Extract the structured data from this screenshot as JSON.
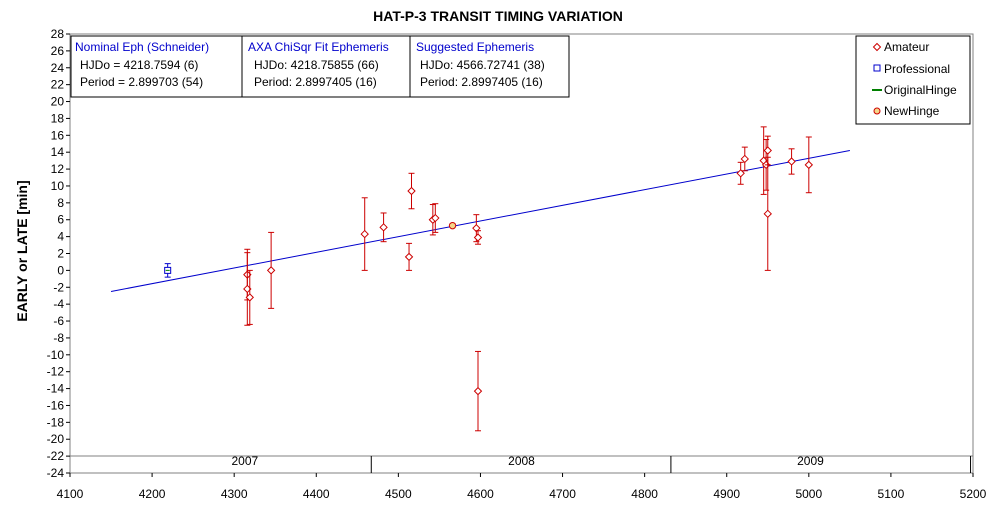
{
  "chart_data": {
    "type": "scatter",
    "title": "HAT-P-3 TRANSIT TIMING VARIATION",
    "ylabel": "EARLY or LATE [min]",
    "xlabel": "",
    "xlim": [
      4100,
      5200
    ],
    "ylim": [
      -24,
      28
    ],
    "x_ticks": [
      4100,
      4200,
      4300,
      4400,
      4500,
      4600,
      4700,
      4800,
      4900,
      5000,
      5100,
      5200
    ],
    "y_ticks": [
      -24,
      -22,
      -20,
      -18,
      -16,
      -14,
      -12,
      -10,
      -8,
      -6,
      -4,
      -2,
      0,
      2,
      4,
      6,
      8,
      10,
      12,
      14,
      16,
      18,
      20,
      22,
      24,
      26,
      28
    ],
    "grid": false,
    "year_labels": [
      {
        "label": "2007",
        "x": 4313
      },
      {
        "label": "2008",
        "x": 4650
      },
      {
        "label": "2009",
        "x": 5002
      }
    ],
    "year_dividers": [
      4467,
      4832,
      5197
    ],
    "fit_line": {
      "x": [
        4150,
        5050
      ],
      "y": [
        -2.5,
        14.2
      ]
    },
    "info_boxes": [
      {
        "header": "Nominal Eph (Schneider)",
        "line1": "HJDo = 4218.7594 (6)",
        "line2": "Period = 2.899703 (54)"
      },
      {
        "header": "AXA ChiSqr Fit Ephemeris",
        "line1": "HJDo:  4218.75855 (66)",
        "line2": "Period: 2.8997405 (16)"
      },
      {
        "header": "Suggested Ephemeris",
        "line1": "HJDo:  4566.72741 (38)",
        "line2": "Period: 2.8997405 (16)"
      }
    ],
    "legend": {
      "position": "top-right",
      "entries": [
        {
          "name": "Amateur",
          "marker": "diamond",
          "color": "#cc0000"
        },
        {
          "name": "Professional",
          "marker": "square",
          "color": "#0000cc"
        },
        {
          "name": "OriginalHinge",
          "marker": "line",
          "color": "#008000"
        },
        {
          "name": "NewHinge",
          "marker": "circle",
          "color": "#cc0000"
        }
      ]
    },
    "series": [
      {
        "name": "Amateur",
        "color": "#cc0000",
        "points": [
          {
            "x": 4316,
            "y": -0.5,
            "err": 3.0
          },
          {
            "x": 4316,
            "y": -2.2,
            "err": 4.3
          },
          {
            "x": 4319,
            "y": -3.2,
            "err": 3.2
          },
          {
            "x": 4345,
            "y": 0.0,
            "err": 4.5
          },
          {
            "x": 4459,
            "y": 4.3,
            "err": 4.3
          },
          {
            "x": 4482,
            "y": 5.1,
            "err": 1.7
          },
          {
            "x": 4513,
            "y": 1.6,
            "err": 1.6
          },
          {
            "x": 4516,
            "y": 9.4,
            "err": 2.1
          },
          {
            "x": 4542,
            "y": 6.0,
            "err": 1.8
          },
          {
            "x": 4545,
            "y": 6.2,
            "err": 1.7
          },
          {
            "x": 4595,
            "y": 5.0,
            "err": 1.6
          },
          {
            "x": 4597,
            "y": 3.9,
            "err": 0.8
          },
          {
            "x": 4597,
            "y": -14.3,
            "err": 4.7
          },
          {
            "x": 4917,
            "y": 11.5,
            "err": 1.3
          },
          {
            "x": 4922,
            "y": 13.2,
            "err": 1.4
          },
          {
            "x": 4945,
            "y": 13.0,
            "err": 4.0
          },
          {
            "x": 4948,
            "y": 12.5,
            "err": 3.0
          },
          {
            "x": 4950,
            "y": 14.2,
            "err": 1.7
          },
          {
            "x": 4950,
            "y": 6.7,
            "err": 6.7
          },
          {
            "x": 4979,
            "y": 12.9,
            "err": 1.5
          },
          {
            "x": 5000,
            "y": 12.5,
            "err": 3.3
          }
        ]
      },
      {
        "name": "Professional",
        "color": "#0000cc",
        "points": [
          {
            "x": 4219,
            "y": 0.0,
            "err": 0.8
          }
        ]
      },
      {
        "name": "NewHinge",
        "color": "#cc0000",
        "points": [
          {
            "x": 4566,
            "y": 5.3,
            "err": 0.0
          }
        ]
      }
    ]
  }
}
